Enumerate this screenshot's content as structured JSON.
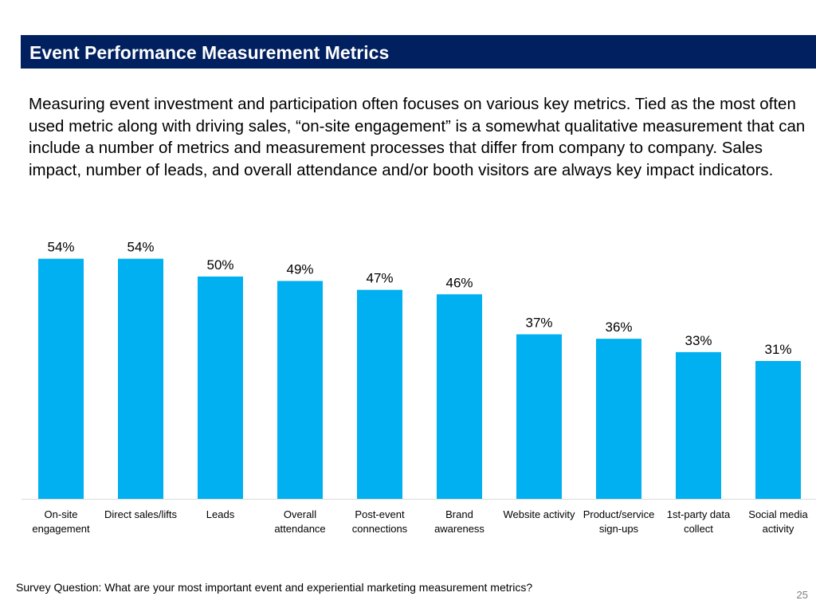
{
  "slide": {
    "title": "Event Performance Measurement Metrics",
    "intro": "Measuring event investment and participation often focuses on various key metrics. Tied as the most often used metric along with driving sales, “on-site engagement” is a somewhat qualitative measurement that can include a number of metrics and measurement processes that differ from company to company. Sales impact, number of leads, and overall attendance and/or booth visitors are always key impact indicators.",
    "footnote": "Survey Question: What are your most important event and experiential marketing measurement metrics?",
    "page_number": "25"
  },
  "chart_data": {
    "type": "bar",
    "title": "",
    "xlabel": "",
    "ylabel": "",
    "ylim": [
      0,
      60
    ],
    "bar_color": "#00b0f0",
    "categories": [
      [
        "On-site",
        "engagement"
      ],
      [
        "Direct sales/lifts"
      ],
      [
        "Leads"
      ],
      [
        "Overall",
        "attendance"
      ],
      [
        "Post-event",
        "connections"
      ],
      [
        "Brand",
        "awareness"
      ],
      [
        "Website activity"
      ],
      [
        "Product/service",
        "sign-ups"
      ],
      [
        "1st-party data",
        "collect"
      ],
      [
        "Social media",
        "activity"
      ]
    ],
    "values": [
      54,
      54,
      50,
      49,
      47,
      46,
      37,
      36,
      33,
      31
    ],
    "value_labels": [
      "54%",
      "54%",
      "50%",
      "49%",
      "47%",
      "46%",
      "37%",
      "36%",
      "33%",
      "31%"
    ]
  }
}
